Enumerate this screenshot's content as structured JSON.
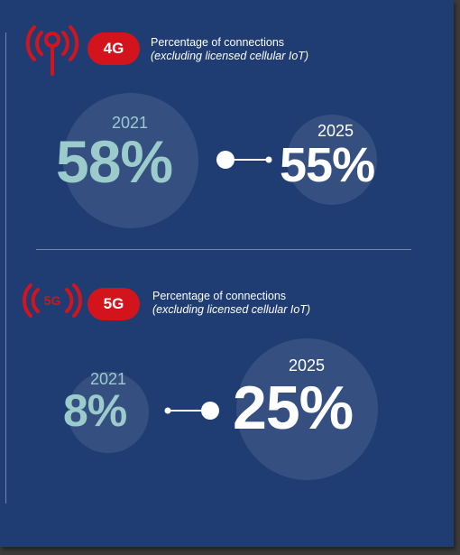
{
  "sections": [
    {
      "badge": "4G",
      "title": "Percentage of connections",
      "subtitle": "(excluding licensed cellular IoT)",
      "start_year": "2021",
      "start_value": "58%",
      "end_year": "2025",
      "end_value": "55%"
    },
    {
      "badge": "5G",
      "icon_text": "5G",
      "title": "Percentage of connections",
      "subtitle": "(excluding licensed cellular IoT)",
      "start_year": "2021",
      "start_value": "8%",
      "end_year": "2025",
      "end_value": "25%"
    }
  ],
  "colors": {
    "background": "#1f3d72",
    "accent_red": "#d4141c",
    "teal": "#9bcccb",
    "white": "#ffffff"
  },
  "icons": [
    "antenna-signal-icon",
    "5g-signal-icon",
    "arrow-connector-icon"
  ]
}
